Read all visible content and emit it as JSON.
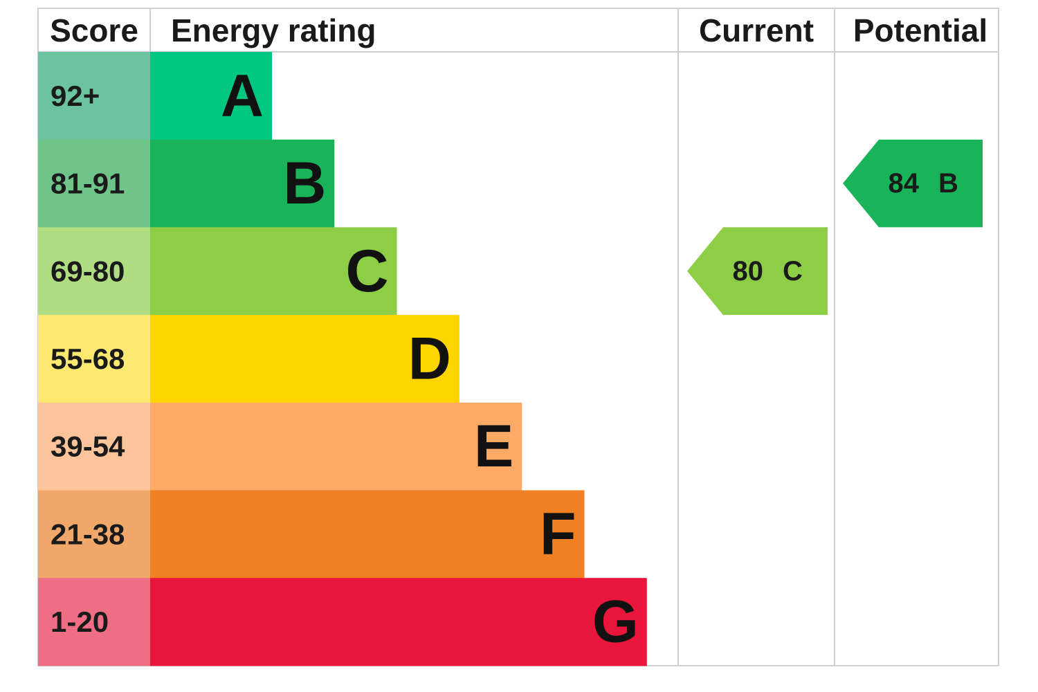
{
  "header": {
    "score": "Score",
    "energy_rating": "Energy rating",
    "current": "Current",
    "potential": "Potential"
  },
  "bands": [
    {
      "score": "92+",
      "letter": "A",
      "color": "#00c781",
      "score_color": "#6cc3a0"
    },
    {
      "score": "81-91",
      "letter": "B",
      "color": "#19b459",
      "score_color": "#6fc48a"
    },
    {
      "score": "69-80",
      "letter": "C",
      "color": "#8dce46",
      "score_color": "#b0dc82"
    },
    {
      "score": "55-68",
      "letter": "D",
      "color": "#ffd500",
      "score_color": "#fde870"
    },
    {
      "score": "39-54",
      "letter": "E",
      "color": "#fcaa65",
      "score_color": "#fbc49a"
    },
    {
      "score": "21-38",
      "letter": "F",
      "color": "#ef8023",
      "score_color": "#f0a86a"
    },
    {
      "score": "1-20",
      "letter": "G",
      "color": "#e9153b",
      "score_color": "#ef6e85"
    }
  ],
  "current": {
    "value": 80,
    "letter": "C"
  },
  "potential": {
    "value": 84,
    "letter": "B"
  }
}
